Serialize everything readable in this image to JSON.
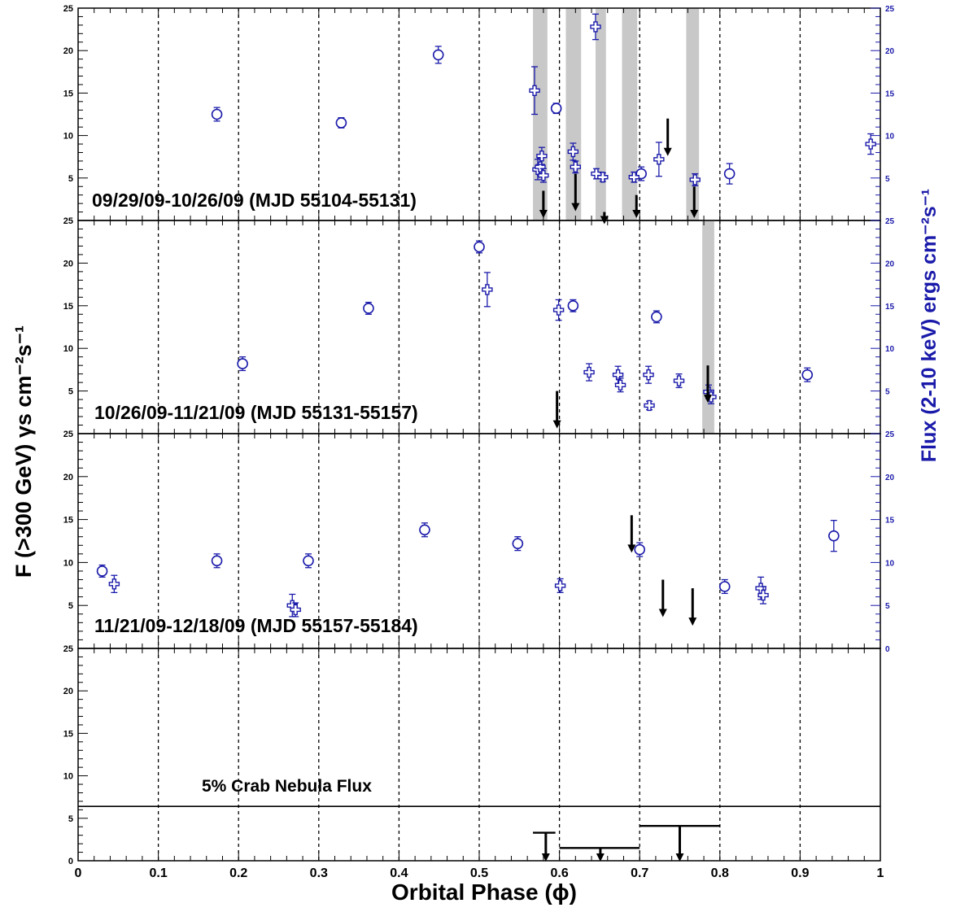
{
  "colors": {
    "axis": "#000000",
    "xray": "#1a1aaa",
    "band": "#c8c8c8",
    "limit": "#000000"
  },
  "chart_data": {
    "type": "scatter",
    "xlabel": "Orbital Phase (ϕ)",
    "ylabel_left": "F (>300 GeV) γs cm⁻²s⁻¹",
    "ylabel_right": "Flux (2-10 keV) ergs cm⁻²s⁻¹",
    "xlim": [
      0,
      1
    ],
    "ylim": [
      0,
      25
    ],
    "x_ticks": [
      0,
      0.1,
      0.2,
      0.3,
      0.4,
      0.5,
      0.6,
      0.7,
      0.8,
      0.9,
      1
    ],
    "x_tick_labels": [
      "0",
      "0.1",
      "0.2",
      "0.3",
      "0.4",
      "0.5",
      "0.6",
      "0.7",
      "0.8",
      "0.9",
      "1"
    ],
    "y_ticks": [
      0,
      5,
      10,
      15,
      20,
      25
    ],
    "y_tick_labels": [
      "0",
      "5",
      "10",
      "15",
      "20",
      "25"
    ],
    "grid": "dashed vertical at 0.1 intervals",
    "panels": [
      {
        "label": "09/29/09-10/26/09 (MJD 55104-55131)",
        "bands": [
          [
            0.567,
            0.585
          ],
          [
            0.608,
            0.627
          ],
          [
            0.645,
            0.658
          ],
          [
            0.678,
            0.697
          ],
          [
            0.758,
            0.774
          ]
        ],
        "vhe_points": [
          {
            "x": 0.173,
            "y": 12.5,
            "err": 0.8
          },
          {
            "x": 0.328,
            "y": 11.5,
            "err": 0.6
          },
          {
            "x": 0.449,
            "y": 19.5,
            "err": 1.0
          },
          {
            "x": 0.596,
            "y": 13.2,
            "err": 0.6
          },
          {
            "x": 0.702,
            "y": 5.5,
            "err": 0.8
          },
          {
            "x": 0.812,
            "y": 5.5,
            "err": 1.2
          }
        ],
        "xray_points": [
          {
            "x": 0.569,
            "y": 15.3,
            "err": 2.8
          },
          {
            "x": 0.573,
            "y": 6.0,
            "err": 1.2
          },
          {
            "x": 0.576,
            "y": 6.3,
            "err": 1.0
          },
          {
            "x": 0.578,
            "y": 7.6,
            "err": 1.0
          },
          {
            "x": 0.58,
            "y": 5.3,
            "err": 0.8
          },
          {
            "x": 0.617,
            "y": 8.1,
            "err": 1.0
          },
          {
            "x": 0.62,
            "y": 6.3,
            "err": 0.7
          },
          {
            "x": 0.645,
            "y": 22.8,
            "err": 1.5
          },
          {
            "x": 0.646,
            "y": 5.5,
            "err": 0.6
          },
          {
            "x": 0.654,
            "y": 5.1,
            "err": 0.5
          },
          {
            "x": 0.693,
            "y": 5.1,
            "err": 0.6
          },
          {
            "x": 0.724,
            "y": 7.2,
            "err": 2.0
          },
          {
            "x": 0.769,
            "y": 4.8,
            "err": 0.7
          },
          {
            "x": 0.988,
            "y": 9.0,
            "err": 1.2
          }
        ],
        "upper_limits": [
          {
            "x": 0.58,
            "y": 3.5
          },
          {
            "x": 0.62,
            "y": 5.5
          },
          {
            "x": 0.656,
            "y": 1.0
          },
          {
            "x": 0.696,
            "y": 3.0
          },
          {
            "x": 0.735,
            "y": 12.0
          },
          {
            "x": 0.768,
            "y": 4.0
          }
        ]
      },
      {
        "label": "10/26/09-11/21/09 (MJD 55131-55157)",
        "bands": [
          [
            0.778,
            0.793
          ]
        ],
        "vhe_points": [
          {
            "x": 0.205,
            "y": 8.2,
            "err": 0.8
          },
          {
            "x": 0.362,
            "y": 14.7,
            "err": 0.7
          },
          {
            "x": 0.5,
            "y": 21.9,
            "err": 0.7
          },
          {
            "x": 0.617,
            "y": 15.0,
            "err": 0.7
          },
          {
            "x": 0.721,
            "y": 13.7,
            "err": 0.7
          },
          {
            "x": 0.909,
            "y": 6.9,
            "err": 0.8
          }
        ],
        "xray_points": [
          {
            "x": 0.51,
            "y": 16.9,
            "err": 2.0
          },
          {
            "x": 0.599,
            "y": 14.5,
            "err": 1.2
          },
          {
            "x": 0.637,
            "y": 7.2,
            "err": 1.0
          },
          {
            "x": 0.673,
            "y": 6.9,
            "err": 1.0
          },
          {
            "x": 0.676,
            "y": 5.7,
            "err": 0.8
          },
          {
            "x": 0.711,
            "y": 6.9,
            "err": 1.0
          },
          {
            "x": 0.712,
            "y": 3.3,
            "err": 0.5
          },
          {
            "x": 0.749,
            "y": 6.2,
            "err": 0.8
          },
          {
            "x": 0.786,
            "y": 4.9,
            "err": 0.8
          },
          {
            "x": 0.789,
            "y": 4.3,
            "err": 0.8
          }
        ],
        "upper_limits": [
          {
            "x": 0.597,
            "y": 5.0
          },
          {
            "x": 0.785,
            "y": 8.0
          }
        ]
      },
      {
        "label": "11/21/09-12/18/09 (MJD 55157-55184)",
        "bands": [],
        "vhe_points": [
          {
            "x": 0.03,
            "y": 9.0,
            "err": 0.7
          },
          {
            "x": 0.173,
            "y": 10.2,
            "err": 0.8
          },
          {
            "x": 0.287,
            "y": 10.2,
            "err": 0.8
          },
          {
            "x": 0.432,
            "y": 13.8,
            "err": 0.8
          },
          {
            "x": 0.548,
            "y": 12.2,
            "err": 0.8
          },
          {
            "x": 0.7,
            "y": 11.5,
            "err": 0.8
          },
          {
            "x": 0.806,
            "y": 7.2,
            "err": 0.8
          },
          {
            "x": 0.942,
            "y": 13.1,
            "err": 1.8
          }
        ],
        "xray_points": [
          {
            "x": 0.045,
            "y": 7.5,
            "err": 1.0
          },
          {
            "x": 0.267,
            "y": 5.0,
            "err": 1.3
          },
          {
            "x": 0.271,
            "y": 4.5,
            "err": 0.8
          },
          {
            "x": 0.601,
            "y": 7.3,
            "err": 0.8
          },
          {
            "x": 0.851,
            "y": 7.0,
            "err": 1.3
          },
          {
            "x": 0.854,
            "y": 6.2,
            "err": 1.0
          }
        ],
        "upper_limits": [
          {
            "x": 0.69,
            "y": 15.5
          },
          {
            "x": 0.729,
            "y": 8.0
          },
          {
            "x": 0.766,
            "y": 7.0
          }
        ]
      },
      {
        "label": "5% Crab Nebula Flux",
        "reference_level": 6.4,
        "bins": [
          {
            "x0": 0.567,
            "x1": 0.595,
            "limit": 3.3,
            "x_arrow": 0.583
          },
          {
            "x0": 0.6,
            "x1": 0.7,
            "limit": 1.5,
            "x_arrow": 0.651
          },
          {
            "x0": 0.7,
            "x1": 0.8,
            "limit": 4.1,
            "x_arrow": 0.75
          }
        ]
      }
    ]
  },
  "labels": {
    "xlabel": "Orbital Phase (ϕ)",
    "ylabel_left": "F (>300 GeV) γs cm⁻²s⁻¹",
    "ylabel_right": "Flux (2-10 keV) ergs cm⁻²s⁻¹",
    "panel1": "09/29/09-10/26/09 (MJD 55104-55131)",
    "panel2": "10/26/09-11/21/09 (MJD 55131-55157)",
    "panel3": "11/21/09-12/18/09 (MJD 55157-55184)",
    "panel4": "5% Crab Nebula Flux"
  }
}
